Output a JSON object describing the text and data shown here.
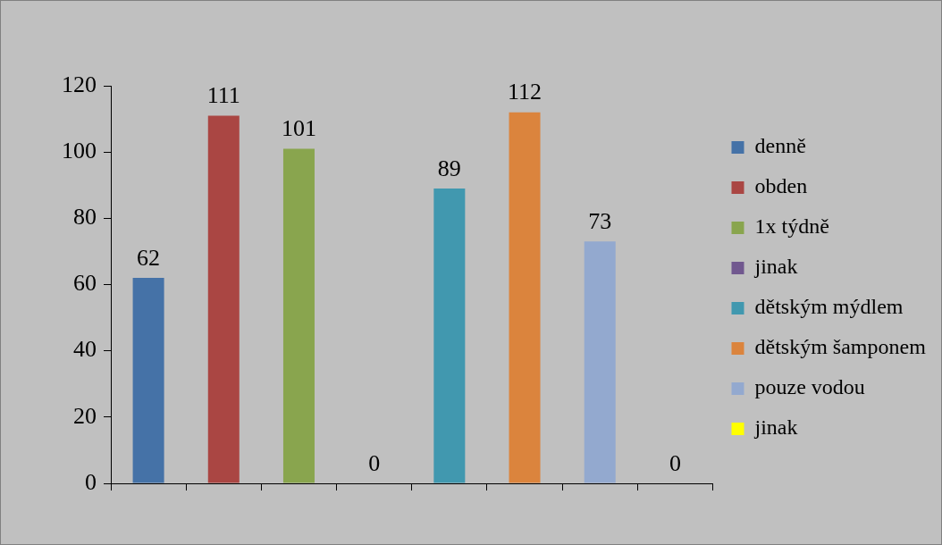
{
  "chart_data": {
    "type": "bar",
    "categories": [
      null,
      null,
      null,
      null,
      null,
      null,
      null,
      null
    ],
    "series": [
      {
        "name": "denně",
        "color": "#4572a7",
        "values": [
          62,
          null,
          null,
          null,
          null,
          null,
          null,
          null
        ]
      },
      {
        "name": "obden",
        "color": "#aa4643",
        "values": [
          null,
          111,
          null,
          null,
          null,
          null,
          null,
          null
        ]
      },
      {
        "name": "1x týdně",
        "color": "#89a54e",
        "values": [
          null,
          null,
          101,
          null,
          null,
          null,
          null,
          null
        ]
      },
      {
        "name": "jinak",
        "color": "#71588f",
        "values": [
          null,
          null,
          null,
          0,
          null,
          null,
          null,
          null
        ]
      },
      {
        "name": "dětským mýdlem",
        "color": "#4198af",
        "values": [
          null,
          null,
          null,
          null,
          89,
          null,
          null,
          null
        ]
      },
      {
        "name": "dětským šamponem",
        "color": "#db843d",
        "values": [
          null,
          null,
          null,
          null,
          null,
          112,
          null,
          null
        ]
      },
      {
        "name": "pouze vodou",
        "color": "#93a9cf",
        "values": [
          null,
          null,
          null,
          null,
          null,
          null,
          73,
          null
        ]
      },
      {
        "name": "jinak",
        "color": "#ffff00",
        "values": [
          null,
          null,
          null,
          null,
          null,
          null,
          null,
          0
        ]
      }
    ],
    "ylim": [
      0,
      120
    ],
    "yticks": [
      0,
      20,
      40,
      60,
      80,
      100,
      120
    ],
    "grid": false,
    "legend": "right",
    "data_labels": true
  }
}
